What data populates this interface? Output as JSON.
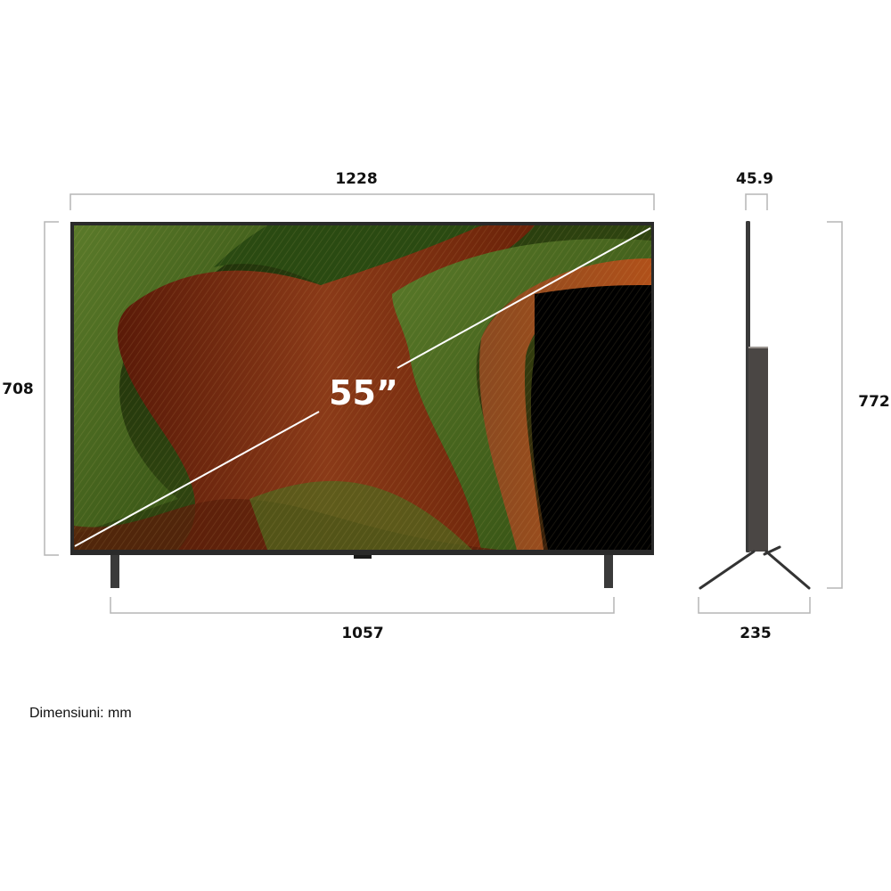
{
  "front_view": {
    "width_label": "1228",
    "height_label": "708",
    "stand_width_label": "1057",
    "diagonal_label": "55”"
  },
  "side_view": {
    "depth_label": "45.9",
    "height_with_stand_label": "772",
    "stand_depth_label": "235"
  },
  "units_note": "Dimensiuni: mm",
  "colors": {
    "dimension_lines": "#b5b5b5",
    "frame": "#2a2a2a",
    "artwork_green": "#4d6a1e",
    "artwork_red": "#7a2a10"
  }
}
